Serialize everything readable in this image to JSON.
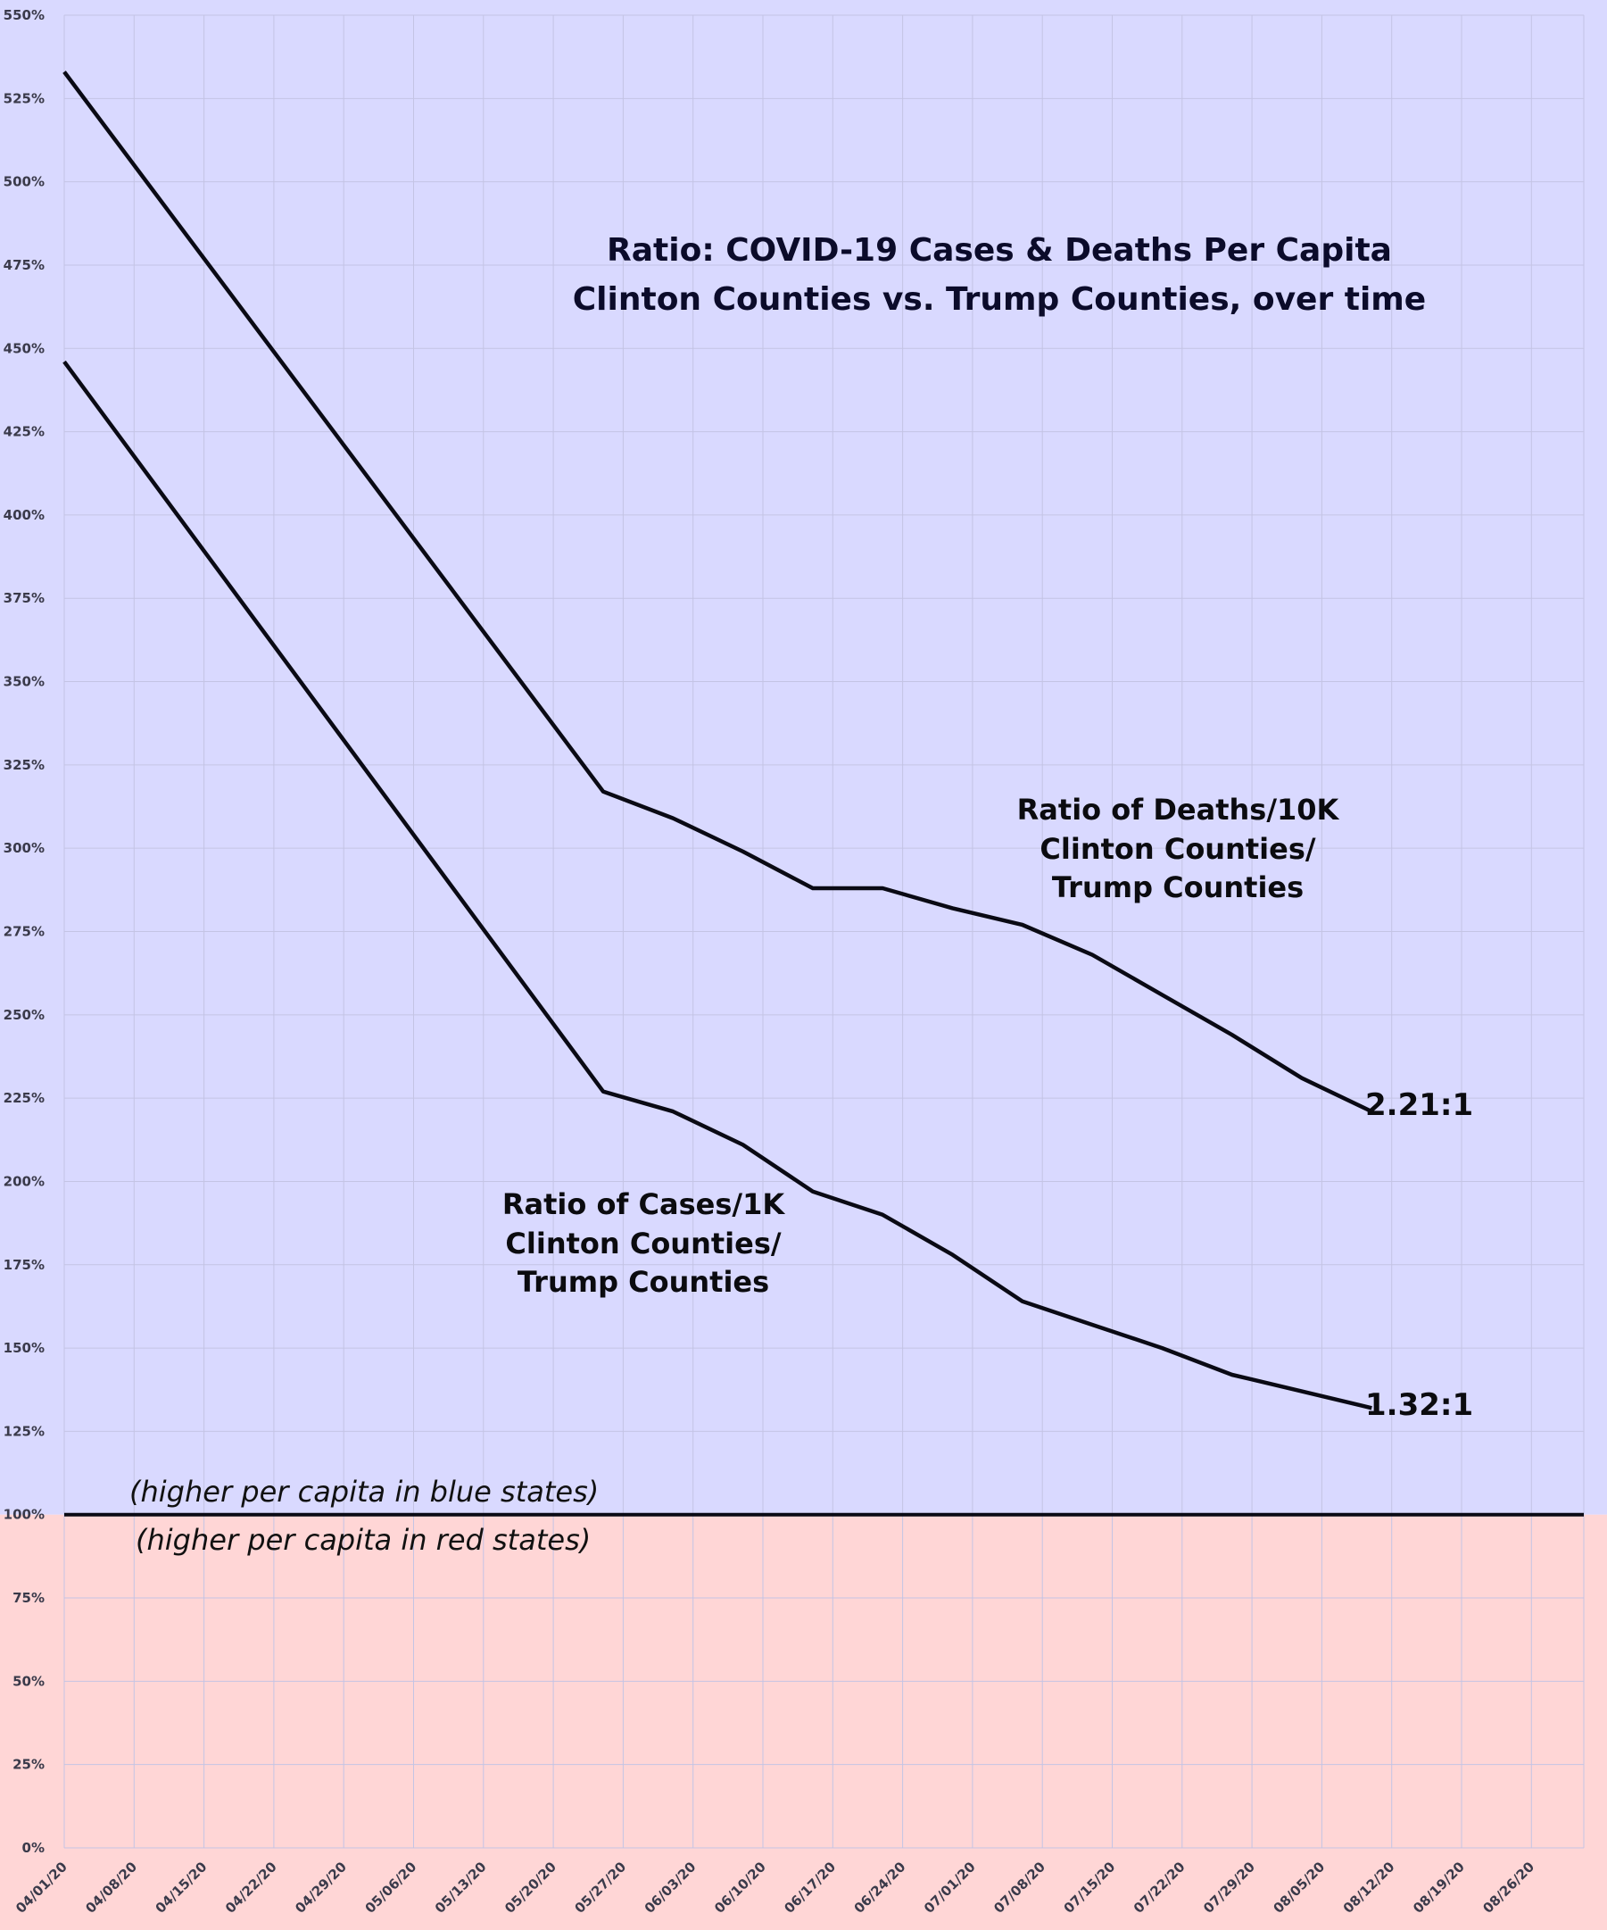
{
  "chart_data": {
    "type": "line",
    "title_lines": [
      "Ratio: COVID-19 Cases & Deaths Per Capita",
      "Clinton Counties vs. Trump Counties, over time"
    ],
    "xlabel": "",
    "ylabel": "",
    "ylim": [
      0,
      5.5
    ],
    "y_ticks": [
      {
        "value": 0,
        "label": "0%"
      },
      {
        "value": 0.25,
        "label": "25%"
      },
      {
        "value": 0.5,
        "label": "50%"
      },
      {
        "value": 0.75,
        "label": "75%"
      },
      {
        "value": 1.0,
        "label": "100%"
      },
      {
        "value": 1.25,
        "label": "125%"
      },
      {
        "value": 1.5,
        "label": "150%"
      },
      {
        "value": 1.75,
        "label": "175%"
      },
      {
        "value": 2.0,
        "label": "200%"
      },
      {
        "value": 2.25,
        "label": "225%"
      },
      {
        "value": 2.5,
        "label": "250%"
      },
      {
        "value": 2.75,
        "label": "275%"
      },
      {
        "value": 3.0,
        "label": "300%"
      },
      {
        "value": 3.25,
        "label": "325%"
      },
      {
        "value": 3.5,
        "label": "350%"
      },
      {
        "value": 3.75,
        "label": "375%"
      },
      {
        "value": 4.0,
        "label": "400%"
      },
      {
        "value": 4.25,
        "label": "425%"
      },
      {
        "value": 4.5,
        "label": "450%"
      },
      {
        "value": 4.75,
        "label": "475%"
      },
      {
        "value": 5.0,
        "label": "500%"
      },
      {
        "value": 5.25,
        "label": "525%"
      },
      {
        "value": 5.5,
        "label": "550%"
      }
    ],
    "x_ticks": [
      "04/01/20",
      "04/08/20",
      "04/15/20",
      "04/22/20",
      "04/29/20",
      "05/06/20",
      "05/13/20",
      "05/20/20",
      "05/27/20",
      "06/03/20",
      "06/10/20",
      "06/17/20",
      "06/24/20",
      "07/01/20",
      "07/08/20",
      "07/15/20",
      "07/22/20",
      "07/29/20",
      "08/05/20",
      "08/12/20",
      "08/19/20",
      "08/26/20"
    ],
    "x_range": [
      "04/01/20",
      "09/01/20"
    ],
    "grid": true,
    "baseline": 1.0,
    "colors": {
      "above_baseline": "#d9d9ff",
      "below_baseline": "#ffd6d6",
      "line": "#0a0a14",
      "grid": "#c4c4e4"
    },
    "series": [
      {
        "label_lines": [
          "Ratio of Deaths/10K",
          "Clinton Counties/",
          "Trump Counties"
        ],
        "end_label": "2.21:1",
        "points": [
          {
            "x": "04/01/20",
            "y": 5.33
          },
          {
            "x": "05/25/20",
            "y": 3.17
          },
          {
            "x": "06/01/20",
            "y": 3.09
          },
          {
            "x": "06/08/20",
            "y": 2.99
          },
          {
            "x": "06/15/20",
            "y": 2.88
          },
          {
            "x": "06/22/20",
            "y": 2.88
          },
          {
            "x": "06/29/20",
            "y": 2.82
          },
          {
            "x": "07/06/20",
            "y": 2.77
          },
          {
            "x": "07/13/20",
            "y": 2.68
          },
          {
            "x": "07/20/20",
            "y": 2.56
          },
          {
            "x": "07/27/20",
            "y": 2.44
          },
          {
            "x": "08/03/20",
            "y": 2.31
          },
          {
            "x": "08/10/20",
            "y": 2.21
          }
        ]
      },
      {
        "label_lines": [
          "Ratio of Cases/1K",
          "Clinton Counties/",
          "Trump Counties"
        ],
        "end_label": "1.32:1",
        "points": [
          {
            "x": "04/01/20",
            "y": 4.46
          },
          {
            "x": "05/25/20",
            "y": 2.27
          },
          {
            "x": "06/01/20",
            "y": 2.21
          },
          {
            "x": "06/08/20",
            "y": 2.11
          },
          {
            "x": "06/15/20",
            "y": 1.97
          },
          {
            "x": "06/22/20",
            "y": 1.9
          },
          {
            "x": "06/29/20",
            "y": 1.78
          },
          {
            "x": "07/06/20",
            "y": 1.64
          },
          {
            "x": "07/13/20",
            "y": 1.57
          },
          {
            "x": "07/20/20",
            "y": 1.5
          },
          {
            "x": "07/27/20",
            "y": 1.42
          },
          {
            "x": "08/03/20",
            "y": 1.37
          },
          {
            "x": "08/10/20",
            "y": 1.32
          }
        ]
      }
    ],
    "annotations": {
      "above": "(higher per capita in blue states)",
      "below": "(higher per capita in red states)"
    }
  }
}
